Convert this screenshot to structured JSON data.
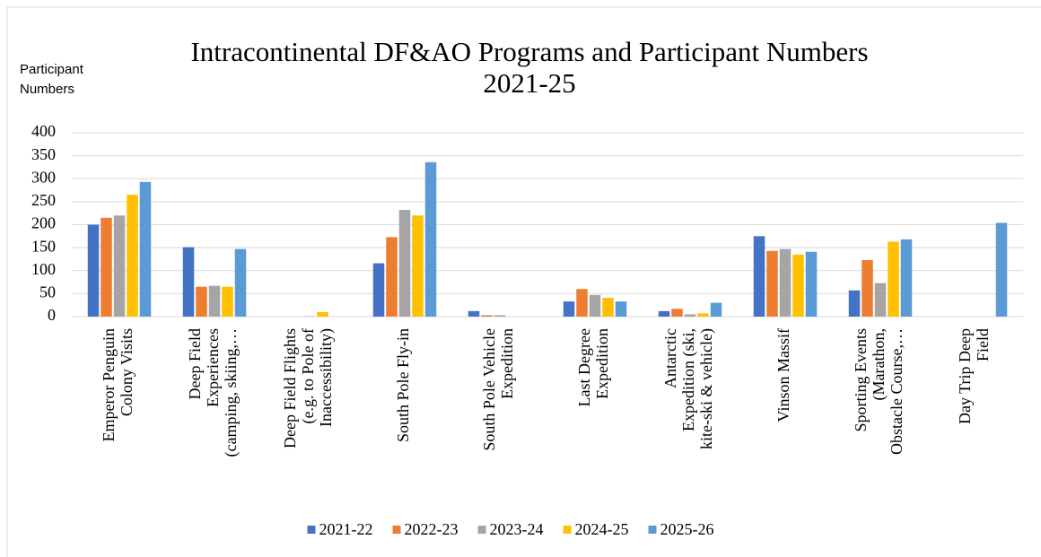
{
  "chart_data": {
    "type": "bar",
    "title": "Intracontinental DF&AO Programs and Participant Numbers 2021-25",
    "y_label": "Participant Numbers",
    "categories": [
      [
        "Emperor Penguin",
        "Colony Visits"
      ],
      [
        "Deep Field",
        "Experiences",
        "(camping, skiing,…"
      ],
      [
        "Deep Field Flights",
        "(e.g. to Pole of",
        "Inaccessibility)"
      ],
      [
        "South Pole Fly-in"
      ],
      [
        "South Pole Vehicle",
        "Expedition"
      ],
      [
        "Last Degree",
        "Expedition"
      ],
      [
        "Antarctic",
        "Expedition (ski,",
        "kite-ski & vehicle)"
      ],
      [
        "Vinson Massif"
      ],
      [
        "Sporting Events",
        "(Marathon,",
        "Obstacle Course,…"
      ],
      [
        "Day Trip Deep",
        "Field"
      ]
    ],
    "series": [
      {
        "name": "2021-22",
        "color": "#4472c4",
        "values": [
          200,
          151,
          0,
          116,
          12,
          33,
          12,
          175,
          57,
          null
        ]
      },
      {
        "name": "2022-23",
        "color": "#ed7d31",
        "values": [
          215,
          65,
          0,
          173,
          3,
          60,
          17,
          143,
          123,
          null
        ]
      },
      {
        "name": "2023-24",
        "color": "#a5a5a5",
        "values": [
          220,
          67,
          1,
          232,
          3,
          47,
          5,
          147,
          73,
          null
        ]
      },
      {
        "name": "2024-25",
        "color": "#ffc000",
        "values": [
          265,
          65,
          10,
          220,
          0,
          41,
          7,
          135,
          163,
          null
        ]
      },
      {
        "name": "2025-26",
        "color": "#5b9bd5",
        "values": [
          293,
          147,
          0,
          336,
          0,
          33,
          30,
          141,
          168,
          204
        ]
      }
    ],
    "ylim": [
      0,
      400
    ],
    "yticks": [
      0,
      50,
      100,
      150,
      200,
      250,
      300,
      350,
      400
    ],
    "grid": true,
    "legend": "bottom"
  }
}
